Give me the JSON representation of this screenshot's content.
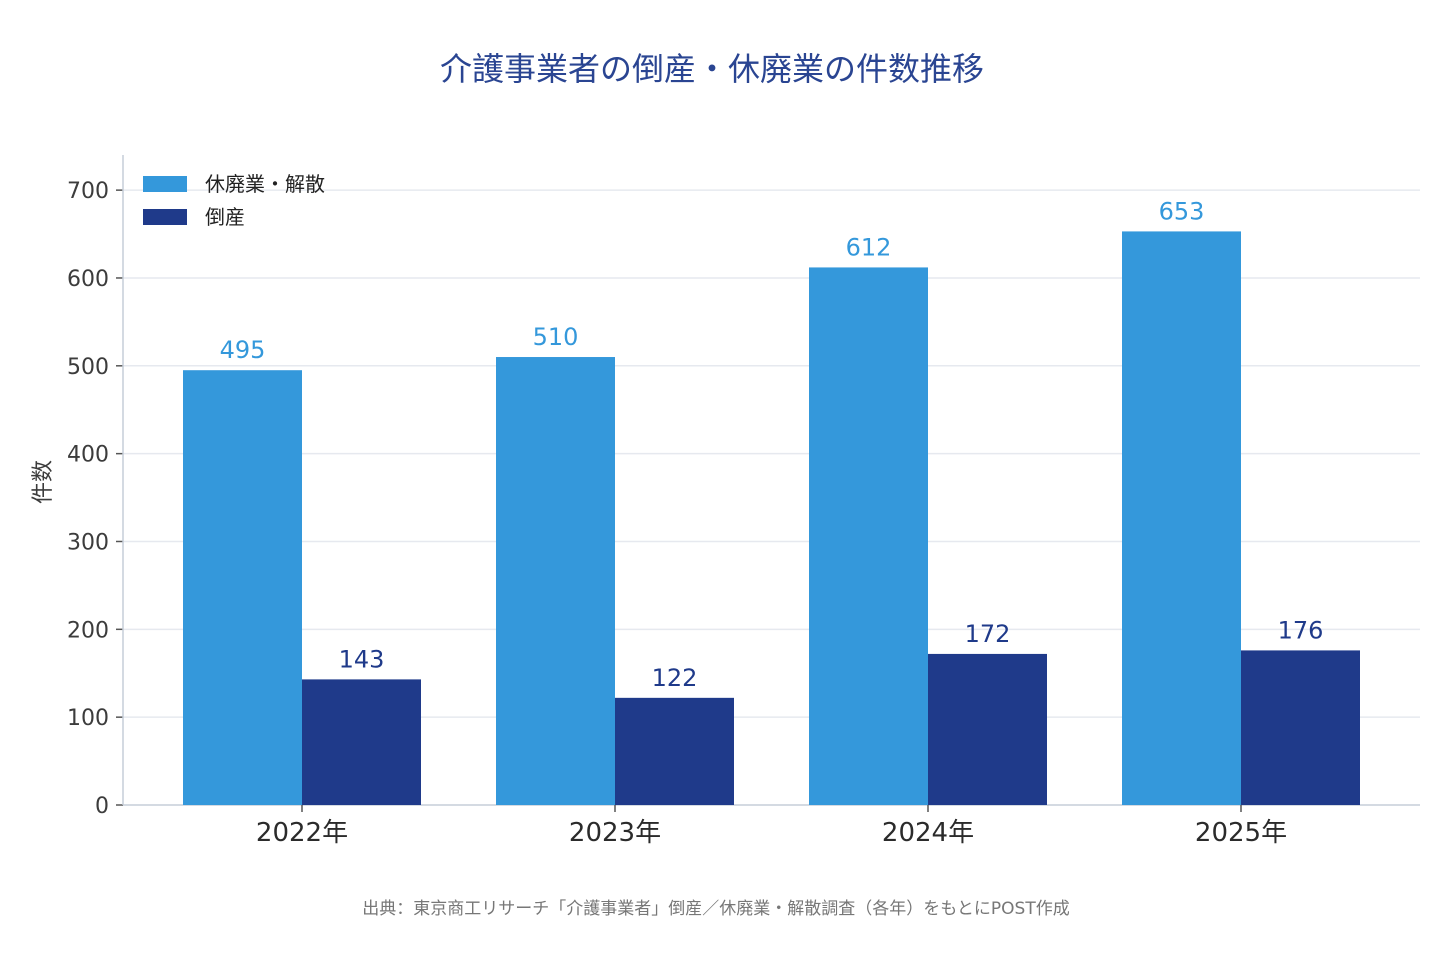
{
  "chart_data": {
    "type": "bar",
    "title": "介護事業者の倒産・休廃業の件数推移",
    "ylabel": "件数",
    "xlabel": "",
    "categories": [
      "2022年",
      "2023年",
      "2024年",
      "2025年"
    ],
    "series": [
      {
        "name": "休廃業・解散",
        "values": [
          495,
          510,
          612,
          653
        ],
        "color": "#3498db"
      },
      {
        "name": "倒産",
        "values": [
          143,
          122,
          172,
          176
        ],
        "color": "#1f3a8a"
      }
    ],
    "ylim": [
      0,
      740
    ],
    "yticks": [
      0,
      100,
      200,
      300,
      400,
      500,
      600,
      700
    ],
    "grid": true,
    "legend_position": "top-left",
    "source": "出典：東京商工リサーチ「介護事業者」倒産／休廃業・解散調査（各年）をもとにPOST作成"
  },
  "colors": {
    "title": "#2a4592",
    "grid": "#e6e9ef",
    "axis": "#c5cdd8"
  }
}
